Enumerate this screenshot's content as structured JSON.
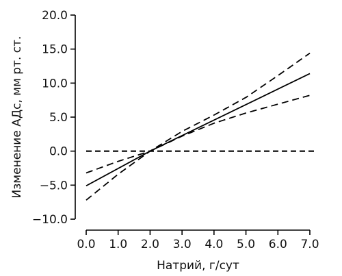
{
  "chart_data": {
    "type": "line",
    "xlabel": "Натрий, г/сут",
    "ylabel": "Изменение АДс, мм рт. ст.",
    "xlim": [
      0,
      7
    ],
    "ylim": [
      -10,
      20
    ],
    "x_ticks": [
      0,
      1,
      2,
      3,
      4,
      5,
      6,
      7
    ],
    "y_ticks": [
      -10,
      -5,
      0,
      5,
      10,
      15,
      20
    ],
    "x_tick_labels": [
      "0.0",
      "1.0",
      "2.0",
      "3.0",
      "4.0",
      "5.0",
      "6.0",
      "7.0"
    ],
    "y_tick_labels": [
      "−10.0",
      "−5.0",
      "0.0",
      "5.0",
      "10.0",
      "15.0",
      "20.0"
    ],
    "grid": false,
    "reference_line": {
      "y": 0,
      "style": "dashed"
    },
    "series": [
      {
        "style": "solid",
        "points": [
          [
            0,
            -5.1
          ],
          [
            2,
            0.0
          ],
          [
            7,
            11.4
          ]
        ]
      },
      {
        "style": "dashed",
        "points": [
          [
            0,
            -3.2
          ],
          [
            1,
            -1.5
          ],
          [
            2,
            0.0
          ],
          [
            3,
            2.2
          ],
          [
            4,
            4.1
          ],
          [
            5,
            5.6
          ],
          [
            6,
            6.9
          ],
          [
            7,
            8.2
          ]
        ]
      },
      {
        "style": "dashed",
        "points": [
          [
            0,
            -7.2
          ],
          [
            1,
            -3.4
          ],
          [
            2,
            0.0
          ],
          [
            3,
            2.9
          ],
          [
            4,
            5.3
          ],
          [
            5,
            7.9
          ],
          [
            6,
            11.1
          ],
          [
            7,
            14.4
          ]
        ]
      }
    ]
  }
}
